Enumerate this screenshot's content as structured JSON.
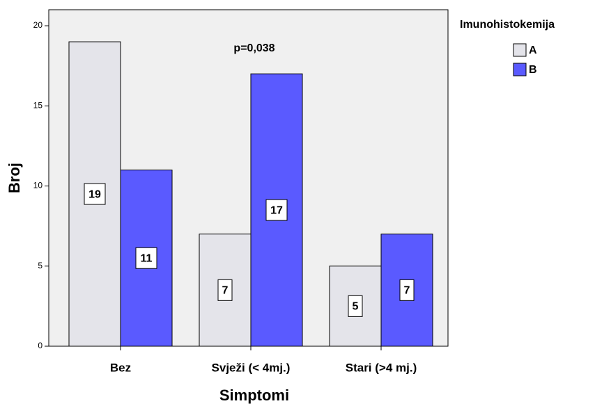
{
  "chart_data": {
    "type": "bar",
    "x_label": "Simptomi",
    "y_label": "Broj",
    "annotation": "p=0,038",
    "legend_title": "Imunohistokemija",
    "legend": "right",
    "categories": [
      "Bez",
      "Svježi (< 4mj.)",
      "Stari (>4 mj.)"
    ],
    "series": [
      {
        "name": "A",
        "color": "#e4e4ea",
        "values": [
          19,
          7,
          5
        ]
      },
      {
        "name": "B",
        "color": "#5a5aff",
        "values": [
          11,
          17,
          7
        ]
      }
    ],
    "ylim": [
      0,
      21
    ],
    "yticks": [
      0,
      5,
      10,
      15,
      20
    ],
    "grid": false
  }
}
